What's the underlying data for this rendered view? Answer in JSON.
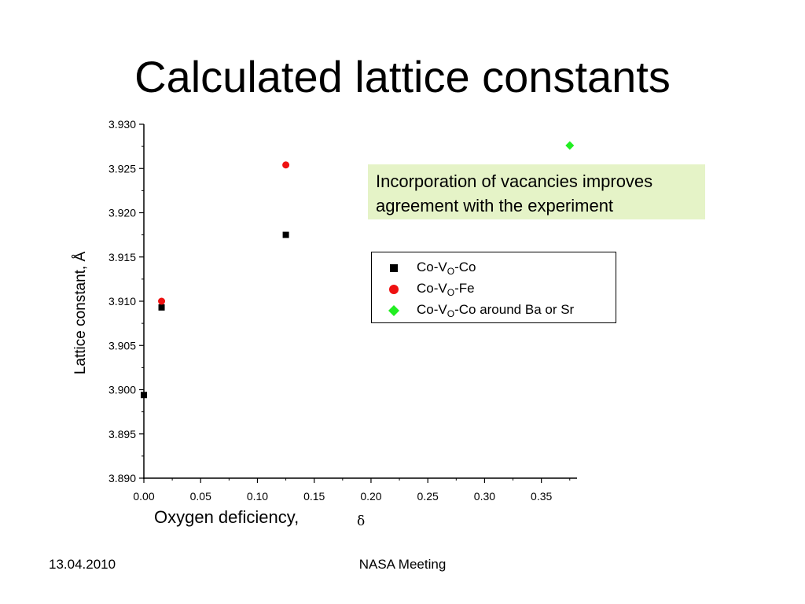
{
  "slide": {
    "title": "Calculated lattice constants",
    "callout": "Incorporation of vacancies improves agreement with the experiment",
    "footer_date": "13.04.2010",
    "footer_center": "NASA Meeting"
  },
  "chart_data": {
    "type": "scatter",
    "title": "",
    "xlabel": "Oxygen deficiency,",
    "xlabel_symbol": "δ",
    "ylabel": "Lattice constant, Å",
    "xlim": [
      0.0,
      0.38
    ],
    "ylim": [
      3.89,
      3.93
    ],
    "x_ticks": [
      "0.00",
      "0.05",
      "0.10",
      "0.15",
      "0.20",
      "0.25",
      "0.30",
      "0.35"
    ],
    "y_ticks": [
      "3.890",
      "3.895",
      "3.900",
      "3.905",
      "3.910",
      "3.915",
      "3.920",
      "3.925",
      "3.930"
    ],
    "legend_position": "right",
    "series": [
      {
        "name_parts": [
          "Co-V",
          "O",
          "-Co"
        ],
        "marker": "square",
        "color": "#000000",
        "points": [
          [
            0.0,
            3.8994
          ],
          [
            0.0156,
            3.9093
          ],
          [
            0.125,
            3.9175
          ]
        ]
      },
      {
        "name_parts": [
          "Co-V",
          "O",
          "-Fe"
        ],
        "marker": "circle",
        "color": "#ee1111",
        "points": [
          [
            0.0156,
            3.91
          ],
          [
            0.125,
            3.9254
          ]
        ]
      },
      {
        "name_parts": [
          "Co-V",
          "O",
          "-Co around Ba or Sr"
        ],
        "marker": "diamond",
        "color": "#22ee22",
        "points": [
          [
            0.375,
            3.9276
          ]
        ]
      }
    ]
  },
  "colors": {
    "callout_bg": "#e5f3c7",
    "axis": "#000000"
  }
}
